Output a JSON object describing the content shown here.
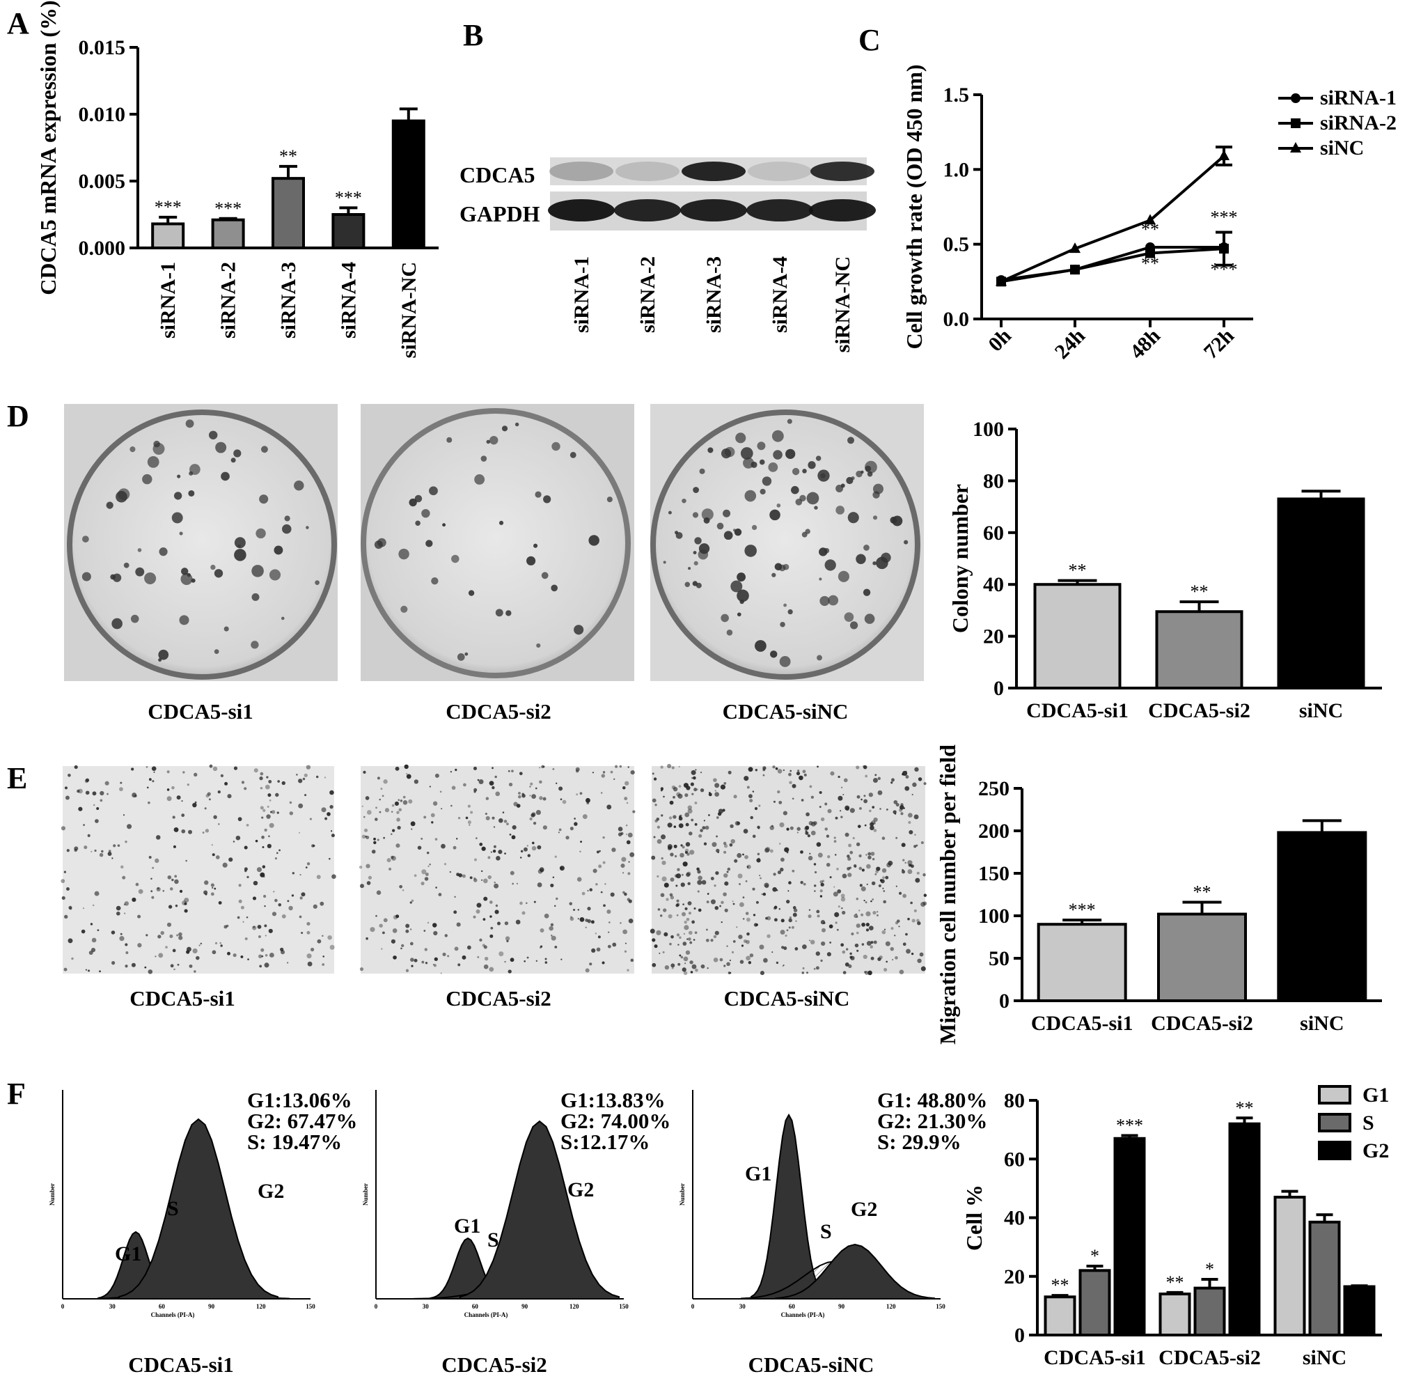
{
  "panels": {
    "A": {
      "letter": "A",
      "chart_data": {
        "type": "bar",
        "ylabel": "CDCA5 mRNA expression (%)",
        "ylim": [
          0,
          0.015
        ],
        "yticks": [
          "0.000",
          "0.005",
          "0.010",
          "0.015"
        ],
        "categories": [
          "siRNA-1",
          "siRNA-2",
          "siRNA-3",
          "siRNA-4",
          "siRNA-NC"
        ],
        "values": [
          0.0018,
          0.0021,
          0.0052,
          0.0025,
          0.0095
        ],
        "errors": [
          0.0005,
          0.0001,
          0.0009,
          0.0005,
          0.0009
        ],
        "significance": [
          "***",
          "***",
          "**",
          "***",
          ""
        ],
        "colors": [
          "#bdbdbd",
          "#8f8f8f",
          "#6a6a6a",
          "#2e2e2e",
          "#000000"
        ]
      }
    },
    "B": {
      "letter": "B",
      "row_labels": [
        "CDCA5",
        "GAPDH"
      ],
      "lane_labels": [
        "siRNA-1",
        "siRNA-2",
        "siRNA-3",
        "siRNA-4",
        "siRNA-NC"
      ],
      "cdca5_band_intensity": [
        0.25,
        0.15,
        0.9,
        0.12,
        0.85
      ],
      "gapdh_band_intensity": [
        0.95,
        0.9,
        0.92,
        0.9,
        0.93
      ]
    },
    "C": {
      "letter": "C",
      "chart_data": {
        "type": "line",
        "ylabel": "Cell growth rate (OD 450 nm)",
        "ylim": [
          0,
          1.5
        ],
        "yticks": [
          "0.0",
          "0.5",
          "1.0",
          "1.5"
        ],
        "categories": [
          "0h",
          "24h",
          "48h",
          "72h"
        ],
        "series": [
          {
            "name": "siRNA-1",
            "marker": "circle",
            "values": [
              0.26,
              0.33,
              0.48,
              0.48
            ],
            "errors": [
              0.01,
              0.01,
              0.01,
              0.01
            ]
          },
          {
            "name": "siRNA-2",
            "marker": "square",
            "values": [
              0.25,
              0.33,
              0.44,
              0.47
            ],
            "errors": [
              0.01,
              0.01,
              0.01,
              0.11
            ]
          },
          {
            "name": "siNC",
            "marker": "triangle",
            "values": [
              0.25,
              0.47,
              0.66,
              1.09
            ],
            "errors": [
              0.01,
              0.01,
              0.01,
              0.06
            ]
          }
        ],
        "annotations": [
          {
            "x": "48h",
            "y": 0.56,
            "text": "**"
          },
          {
            "x": "48h",
            "y": 0.33,
            "text": "**"
          },
          {
            "x": "72h",
            "y": 0.64,
            "text": "***"
          },
          {
            "x": "72h",
            "y": 0.29,
            "text": "***"
          }
        ]
      }
    },
    "D": {
      "letter": "D",
      "image_captions": [
        "CDCA5-si1",
        "CDCA5-si2",
        "CDCA5-siNC"
      ],
      "chart_data": {
        "type": "bar",
        "ylabel": "Colony number",
        "ylim": [
          0,
          100
        ],
        "yticks": [
          "0",
          "20",
          "40",
          "60",
          "80",
          "100"
        ],
        "categories": [
          "CDCA5-si1",
          "CDCA5-si2",
          "siNC"
        ],
        "values": [
          40,
          29.5,
          73
        ],
        "errors": [
          1.5,
          3.8,
          3
        ],
        "significance": [
          "**",
          "**",
          ""
        ],
        "colors": [
          "#c8c8c8",
          "#8c8c8c",
          "#000000"
        ]
      }
    },
    "E": {
      "letter": "E",
      "image_captions": [
        "CDCA5-si1",
        "CDCA5-si2",
        "CDCA5-siNC"
      ],
      "chart_data": {
        "type": "bar",
        "ylabel": "Migration cell number per field",
        "ylim": [
          0,
          250
        ],
        "yticks": [
          "0",
          "50",
          "100",
          "150",
          "200",
          "250"
        ],
        "categories": [
          "CDCA5-si1",
          "CDCA5-si2",
          "siNC"
        ],
        "values": [
          90,
          102,
          198
        ],
        "errors": [
          5,
          14,
          14
        ],
        "significance": [
          "***",
          "**",
          ""
        ],
        "colors": [
          "#c8c8c8",
          "#8c8c8c",
          "#000000"
        ]
      }
    },
    "F": {
      "letter": "F",
      "histograms": [
        {
          "caption": "CDCA5-si1",
          "lines": [
            "G1:13.06%",
            "G2: 67.47%",
            "S: 19.47%"
          ],
          "peaks": [
            "G1",
            "S",
            "G2"
          ]
        },
        {
          "caption": "CDCA5-si2",
          "lines": [
            "G1:13.83%",
            "G2: 74.00%",
            "S:12.17%"
          ],
          "peaks": [
            "G1",
            "S",
            "G2"
          ]
        },
        {
          "caption": "CDCA5-siNC",
          "lines": [
            "G1: 48.80%",
            "G2: 21.30%",
            "S: 29.9%"
          ],
          "peaks": [
            "G1",
            "S",
            "G2"
          ]
        }
      ],
      "hist_axis": {
        "xlabel": "Channels (PI-A)",
        "ylabel": "Number",
        "xticks": [
          "0",
          "30",
          "60",
          "90",
          "120",
          "150"
        ]
      },
      "chart_data": {
        "type": "bar",
        "ylabel": "Cell %",
        "ylim": [
          0,
          80
        ],
        "yticks": [
          "0",
          "20",
          "40",
          "60",
          "80"
        ],
        "categories": [
          "CDCA5-si1",
          "CDCA5-si2",
          "siNC"
        ],
        "series": [
          {
            "name": "G1",
            "color": "#c8c8c8",
            "values": [
              13,
              14,
              47
            ],
            "errors": [
              0.5,
              0.5,
              2
            ],
            "significance": [
              "**",
              "**",
              ""
            ]
          },
          {
            "name": "S",
            "color": "#6a6a6a",
            "values": [
              22,
              16,
              38.5
            ],
            "errors": [
              1.5,
              3,
              2.5
            ],
            "significance": [
              "*",
              "*",
              ""
            ]
          },
          {
            "name": "G2",
            "color": "#000000",
            "values": [
              67,
              72,
              16.5
            ],
            "errors": [
              1,
              2,
              0.3
            ],
            "significance": [
              "***",
              "**",
              ""
            ]
          }
        ],
        "legend_position": "top-right"
      }
    }
  }
}
